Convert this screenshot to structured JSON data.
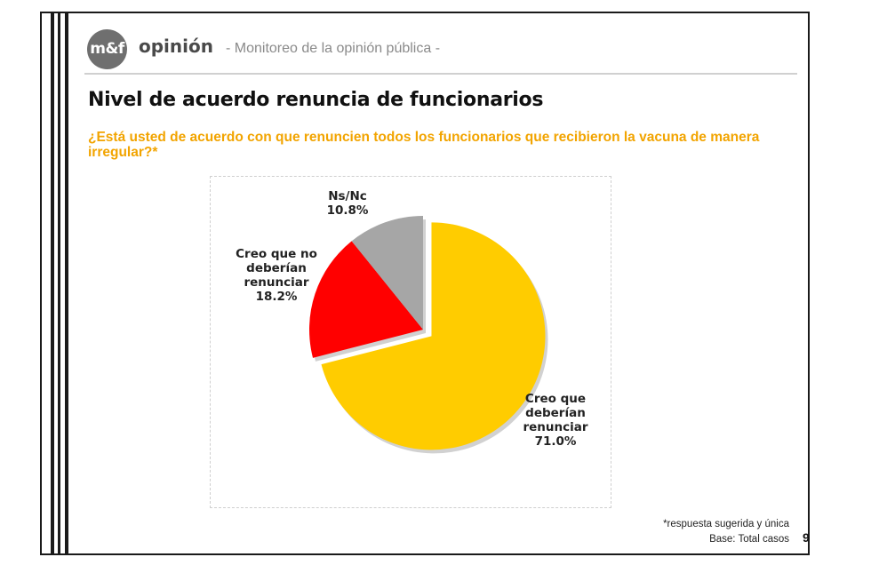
{
  "header": {
    "logo_text": "m&f",
    "brand": "opinión",
    "tagline": "- Monitoreo de la opinión pública -"
  },
  "title": "Nivel de acuerdo renuncia de funcionarios",
  "question": "¿Está usted de acuerdo con que renuncien todos los funcionarios que recibieron la vacuna de manera irregular?*",
  "chart_data": {
    "type": "pie",
    "slices": [
      {
        "label": "Creo que deberían renunciar",
        "label_lines": [
          "Creo que",
          "deberían",
          "renunciar"
        ],
        "value": 71.0,
        "value_text": "71.0%",
        "color": "#FFCC00",
        "exploded": true
      },
      {
        "label": "Creo que no deberían renunciar",
        "label_lines": [
          "Creo que no",
          "deberían",
          "renunciar"
        ],
        "value": 18.2,
        "value_text": "18.2%",
        "color": "#FF0000",
        "exploded": false
      },
      {
        "label": "Ns/Nc",
        "label_lines": [
          "Ns/Nc"
        ],
        "value": 10.8,
        "value_text": "10.8%",
        "color": "#A6A6A6",
        "exploded": false
      }
    ]
  },
  "footer": {
    "note": "*respuesta sugerida y única",
    "base": "Base: Total casos",
    "page": "9"
  }
}
